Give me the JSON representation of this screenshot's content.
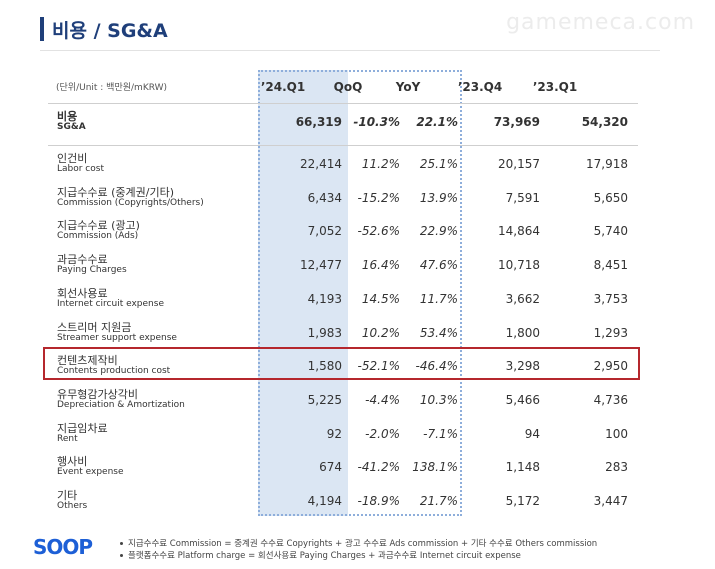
{
  "header": {
    "title": "비용 / SG&A",
    "watermark": "gamemeca.com"
  },
  "table": {
    "unit": "(단위/Unit : 백만원/mKRW)",
    "columns": [
      "’24.Q1",
      "QoQ",
      "YoY",
      "’23.Q4",
      "’23.Q1"
    ],
    "rows": [
      {
        "ko": "비용",
        "en": "SG&A",
        "cells": [
          "66,319",
          "-10.3%",
          "22.1%",
          "73,969",
          "54,320"
        ]
      },
      {
        "ko": "인건비",
        "en": "Labor cost",
        "cells": [
          "22,414",
          "11.2%",
          "25.1%",
          "20,157",
          "17,918"
        ]
      },
      {
        "ko": "지급수수료 (중계권/기타)",
        "en": "Commission (Copyrights/Others)",
        "cells": [
          "6,434",
          "-15.2%",
          "13.9%",
          "7,591",
          "5,650"
        ]
      },
      {
        "ko": "지급수수료 (광고)",
        "en": "Commission (Ads)",
        "cells": [
          "7,052",
          "-52.6%",
          "22.9%",
          "14,864",
          "5,740"
        ]
      },
      {
        "ko": "과금수수료",
        "en": "Paying Charges",
        "cells": [
          "12,477",
          "16.4%",
          "47.6%",
          "10,718",
          "8,451"
        ]
      },
      {
        "ko": "회선사용료",
        "en": "Internet circuit expense",
        "cells": [
          "4,193",
          "14.5%",
          "11.7%",
          "3,662",
          "3,753"
        ]
      },
      {
        "ko": "스트리머 지원금",
        "en": "Streamer support expense",
        "cells": [
          "1,983",
          "10.2%",
          "53.4%",
          "1,800",
          "1,293"
        ]
      },
      {
        "ko": "컨텐츠제작비",
        "en": "Contents production cost",
        "cells": [
          "1,580",
          "-52.1%",
          "-46.4%",
          "3,298",
          "2,950"
        ]
      },
      {
        "ko": "유무형감가상각비",
        "en": "Depreciation & Amortization",
        "cells": [
          "5,225",
          "-4.4%",
          "10.3%",
          "5,466",
          "4,736"
        ]
      },
      {
        "ko": "지급임차료",
        "en": "Rent",
        "cells": [
          "92",
          "-2.0%",
          "-7.1%",
          "94",
          "100"
        ]
      },
      {
        "ko": "행사비",
        "en": "Event expense",
        "cells": [
          "674",
          "-41.2%",
          "138.1%",
          "1,148",
          "283"
        ]
      },
      {
        "ko": "기타",
        "en": "Others",
        "cells": [
          "4,194",
          "-18.9%",
          "21.7%",
          "5,172",
          "3,447"
        ]
      }
    ]
  },
  "footer": {
    "logo": "SOOP",
    "notes": [
      "지급수수료 Commission = 중계권 수수료 Copyrights + 광고 수수료  Ads commission + 기타 수수료 Others commission",
      "플랫폼수수료 Platform charge = 회선사용료 Paying Charges + 과금수수료 Internet circuit expense"
    ]
  }
}
